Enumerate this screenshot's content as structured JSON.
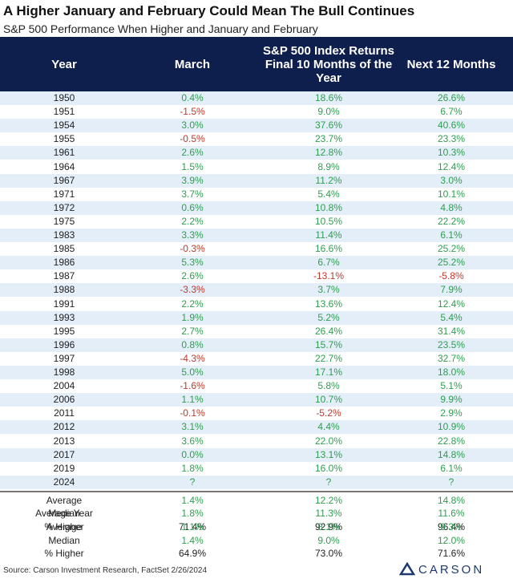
{
  "header": {
    "title": "A Higher January and February Could Mean The Bull Continues",
    "subtitle": "S&P 500 Performance When Higher and January and February"
  },
  "table": {
    "columns": [
      "Year",
      "March",
      "S&P 500 Index Returns Final 10 Months of the Year",
      "Next 12 Months"
    ],
    "rows": [
      [
        "1950",
        "0.4%",
        "18.6%",
        "26.6%"
      ],
      [
        "1951",
        "-1.5%",
        "9.0%",
        "6.7%"
      ],
      [
        "1954",
        "3.0%",
        "37.6%",
        "40.6%"
      ],
      [
        "1955",
        "-0.5%",
        "23.7%",
        "23.3%"
      ],
      [
        "1961",
        "2.6%",
        "12.8%",
        "10.3%"
      ],
      [
        "1964",
        "1.5%",
        "8.9%",
        "12.4%"
      ],
      [
        "1967",
        "3.9%",
        "11.2%",
        "3.0%"
      ],
      [
        "1971",
        "3.7%",
        "5.4%",
        "10.1%"
      ],
      [
        "1972",
        "0.6%",
        "10.8%",
        "4.8%"
      ],
      [
        "1975",
        "2.2%",
        "10.5%",
        "22.2%"
      ],
      [
        "1983",
        "3.3%",
        "11.4%",
        "6.1%"
      ],
      [
        "1985",
        "-0.3%",
        "16.6%",
        "25.2%"
      ],
      [
        "1986",
        "5.3%",
        "6.7%",
        "25.2%"
      ],
      [
        "1987",
        "2.6%",
        "-13.1%",
        "-5.8%"
      ],
      [
        "1988",
        "-3.3%",
        "3.7%",
        "7.9%"
      ],
      [
        "1991",
        "2.2%",
        "13.6%",
        "12.4%"
      ],
      [
        "1993",
        "1.9%",
        "5.2%",
        "5.4%"
      ],
      [
        "1995",
        "2.7%",
        "26.4%",
        "31.4%"
      ],
      [
        "1996",
        "0.8%",
        "15.7%",
        "23.5%"
      ],
      [
        "1997",
        "-4.3%",
        "22.7%",
        "32.7%"
      ],
      [
        "1998",
        "5.0%",
        "17.1%",
        "18.0%"
      ],
      [
        "2004",
        "-1.6%",
        "5.8%",
        "5.1%"
      ],
      [
        "2006",
        "1.1%",
        "10.7%",
        "9.9%"
      ],
      [
        "2011",
        "-0.1%",
        "-5.2%",
        "2.9%"
      ],
      [
        "2012",
        "3.1%",
        "4.4%",
        "10.9%"
      ],
      [
        "2013",
        "3.6%",
        "22.0%",
        "22.8%"
      ],
      [
        "2017",
        "0.0%",
        "13.1%",
        "14.8%"
      ],
      [
        "2019",
        "1.8%",
        "16.0%",
        "6.1%"
      ],
      [
        "2024",
        "?",
        "?",
        "?"
      ]
    ],
    "summary": [
      {
        "label": "Average",
        "values": [
          "1.4%",
          "12.2%",
          "14.8%"
        ],
        "color": "#2e9e4f"
      },
      {
        "label": "Median",
        "values": [
          "1.8%",
          "11.3%",
          "11.6%"
        ],
        "color": "#2e9e4f"
      },
      {
        "label": "% Higher",
        "values": [
          "71.4%",
          "92.9%",
          "96.4%"
        ],
        "color": "#222222"
      }
    ],
    "average_year": {
      "title": "Average Year",
      "rows": [
        {
          "label": "Average",
          "values": [
            "1.1%",
            "8.1%",
            "9.3%"
          ],
          "color": "#2e9e4f"
        },
        {
          "label": "Median",
          "values": [
            "1.4%",
            "9.0%",
            "12.0%"
          ],
          "color": "#2e9e4f"
        },
        {
          "label": "% Higher",
          "values": [
            "64.9%",
            "73.0%",
            "71.6%"
          ],
          "color": "#222222"
        }
      ]
    }
  },
  "footer": {
    "source": "Source: Carson Investment Research, FactSet 2/26/2024",
    "logo": "CARSON"
  }
}
